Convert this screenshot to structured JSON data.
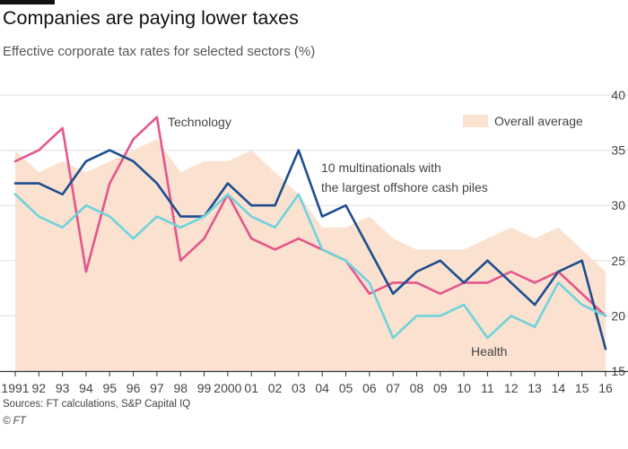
{
  "header": {
    "title": "Companies are paying lower taxes",
    "subtitle": "Effective corporate tax rates for selected sectors (%)"
  },
  "footer": {
    "source": "Sources: FT calculations, S&P Capital IQ",
    "credit": "© FT"
  },
  "colors": {
    "technology": "#e3568c",
    "multinationals": "#1d4e8f",
    "health": "#6fd3dc",
    "average": "#fbe1d0",
    "grid": "#dddddd",
    "axis": "#333333",
    "text": "#444444"
  },
  "chart_data": {
    "type": "line",
    "title": "Companies are paying lower taxes",
    "subtitle": "Effective corporate tax rates for selected sectors (%)",
    "x_tick_labels": [
      "1991",
      "92",
      "93",
      "94",
      "95",
      "96",
      "97",
      "98",
      "99",
      "2000",
      "01",
      "02",
      "03",
      "04",
      "05",
      "06",
      "07",
      "08",
      "09",
      "10",
      "11",
      "12",
      "13",
      "14",
      "15",
      "16"
    ],
    "x": [
      1991,
      1992,
      1993,
      1994,
      1995,
      1996,
      1997,
      1998,
      1999,
      2000,
      2001,
      2002,
      2003,
      2004,
      2005,
      2006,
      2007,
      2008,
      2009,
      2010,
      2011,
      2012,
      2013,
      2014,
      2015,
      2016
    ],
    "ylim": [
      15,
      40
    ],
    "y_ticks": [
      15,
      20,
      25,
      30,
      35,
      40
    ],
    "grid": true,
    "legend": "inline-labels",
    "series": [
      {
        "name": "Overall average",
        "kind": "area",
        "color_key": "average",
        "values": [
          35,
          33,
          34,
          33,
          34,
          35,
          36,
          33,
          34,
          34,
          35,
          33,
          31,
          28,
          28,
          29,
          27,
          26,
          26,
          26,
          27,
          28,
          27,
          28,
          26,
          24
        ]
      },
      {
        "name": "Technology",
        "kind": "line",
        "color_key": "technology",
        "values": [
          34,
          35,
          37,
          24,
          32,
          36,
          38,
          25,
          27,
          31,
          27,
          26,
          27,
          26,
          25,
          22,
          23,
          23,
          22,
          23,
          23,
          24,
          23,
          24,
          22,
          20
        ]
      },
      {
        "name": "10 multinationals with the largest offshore cash piles",
        "label_lines": [
          "10 multinationals with",
          "the largest offshore cash piles"
        ],
        "kind": "line",
        "color_key": "multinationals",
        "values": [
          32,
          32,
          31,
          34,
          35,
          34,
          32,
          29,
          29,
          32,
          30,
          30,
          35,
          29,
          30,
          26,
          22,
          24,
          25,
          23,
          25,
          23,
          21,
          24,
          25,
          17
        ]
      },
      {
        "name": "Health",
        "kind": "line",
        "color_key": "health",
        "values": [
          31,
          29,
          28,
          30,
          29,
          27,
          29,
          28,
          29,
          31,
          29,
          28,
          31,
          26,
          25,
          23,
          18,
          20,
          20,
          21,
          18,
          20,
          19,
          23,
          21,
          20
        ]
      }
    ]
  }
}
